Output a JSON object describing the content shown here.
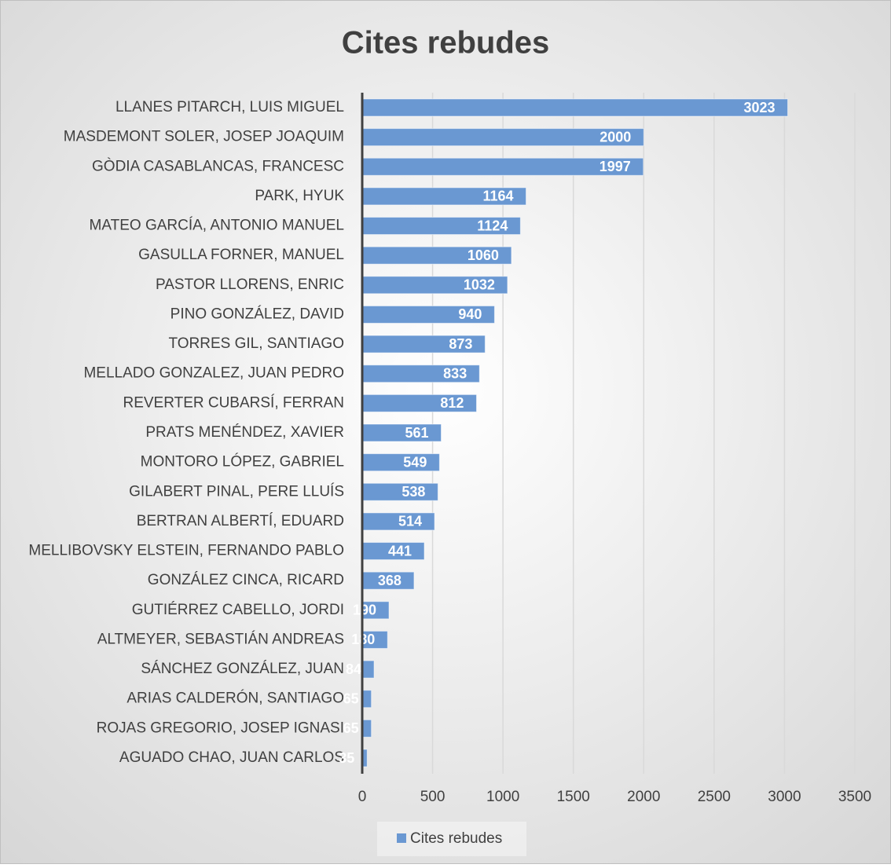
{
  "chart_data": {
    "type": "bar",
    "orientation": "horizontal",
    "title": "Cites rebudes",
    "categories": [
      "LLANES PITARCH, LUIS MIGUEL",
      "MASDEMONT SOLER, JOSEP JOAQUIM",
      "GÒDIA CASABLANCAS, FRANCESC",
      "PARK, HYUK",
      "MATEO GARCÍA, ANTONIO MANUEL",
      "GASULLA FORNER, MANUEL",
      "PASTOR LLORENS, ENRIC",
      "PINO GONZÁLEZ, DAVID",
      "TORRES GIL, SANTIAGO",
      "MELLADO GONZALEZ, JUAN PEDRO",
      "REVERTER CUBARSÍ, FERRAN",
      "PRATS MENÉNDEZ, XAVIER",
      "MONTORO LÓPEZ, GABRIEL",
      "GILABERT PINAL, PERE LLUÍS",
      "BERTRAN ALBERTÍ, EDUARD",
      "MELLIBOVSKY ELSTEIN, FERNANDO PABLO",
      "GONZÁLEZ CINCA, RICARD",
      "GUTIÉRREZ CABELLO, JORDI",
      "ALTMEYER, SEBASTIÁN ANDREAS",
      "SÁNCHEZ GONZÁLEZ, JUAN",
      "ARIAS CALDERÓN, SANTIAGO",
      "ROJAS GREGORIO, JOSEP IGNASI",
      "AGUADO CHAO, JUAN CARLOS"
    ],
    "series": [
      {
        "name": "Cites rebudes",
        "color": "#6a98d2",
        "values": [
          3023,
          2000,
          1997,
          1164,
          1124,
          1060,
          1032,
          940,
          873,
          833,
          812,
          561,
          549,
          538,
          514,
          441,
          368,
          190,
          180,
          84,
          65,
          65,
          35
        ]
      }
    ],
    "xlim": [
      0,
      3500
    ],
    "xticks": [
      0,
      500,
      1000,
      1500,
      2000,
      2500,
      3000,
      3500
    ],
    "grid": true
  }
}
